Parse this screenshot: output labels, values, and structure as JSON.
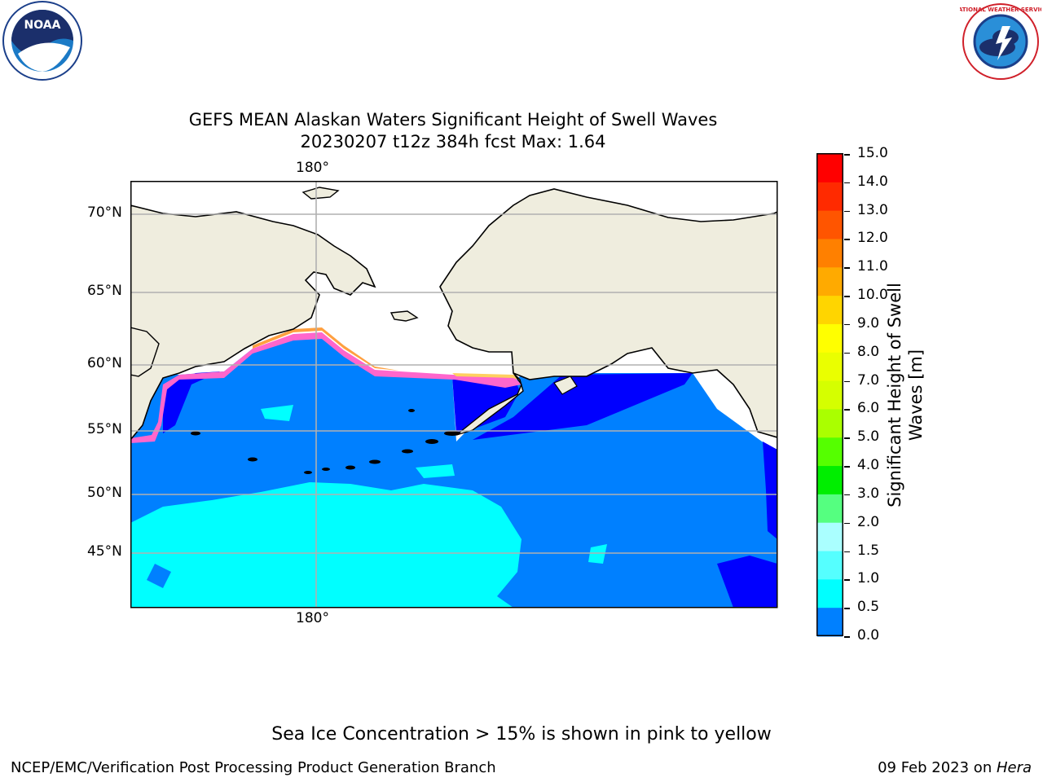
{
  "title_line1": "GEFS MEAN Alaskan Waters Significant Height of Swell Waves",
  "title_line2": "20230207 t12z 384h fcst   Max: 1.64",
  "map": {
    "lon_label_top": "180°",
    "lon_label_bottom": "180°",
    "lat_labels": [
      "70°N",
      "65°N",
      "60°N",
      "55°N",
      "50°N",
      "45°N"
    ],
    "colors": {
      "land": "#efedde",
      "ocean_low": "#0000ff",
      "ocean_mid": "#0080ff",
      "ocean_high": "#00ffff",
      "ice_pink": "#ff66cc",
      "ice_orange": "#ffa040",
      "ice_yellow": "#ffff00"
    }
  },
  "colorbar": {
    "label_line1": "Significant Height of Swell",
    "label_line2": "Waves [m]",
    "ticks": [
      "15.0",
      "14.0",
      "13.0",
      "12.0",
      "11.0",
      "10.0",
      "9.0",
      "8.0",
      "7.0",
      "6.0",
      "5.0",
      "4.0",
      "3.0",
      "2.0",
      "1.5",
      "1.0",
      "0.5",
      "0.0"
    ],
    "colors": [
      "#ff0000",
      "#ff2a00",
      "#ff5500",
      "#ff8000",
      "#ffaa00",
      "#ffd500",
      "#ffff00",
      "#eaff00",
      "#d5ff00",
      "#aaff00",
      "#55ff00",
      "#00ee00",
      "#55ff80",
      "#aaffff",
      "#55ffff",
      "#00ffff",
      "#0080ff",
      "#0000ff"
    ]
  },
  "note": "Sea Ice Concentration > 15% is shown in pink to yellow",
  "footer_left": "NCEP/EMC/Verification Post Processing Product Generation Branch",
  "footer_date": "09 Feb 2023 on ",
  "footer_host": "Hera",
  "logos": {
    "left": "NOAA",
    "right_ring": "NATIONAL WEATHER SERVICE",
    "left_ring": "NATIONAL OCEANIC AND ATMOSPHERIC ADMINISTRATION · U.S. DEPARTMENT OF COMMERCE"
  }
}
